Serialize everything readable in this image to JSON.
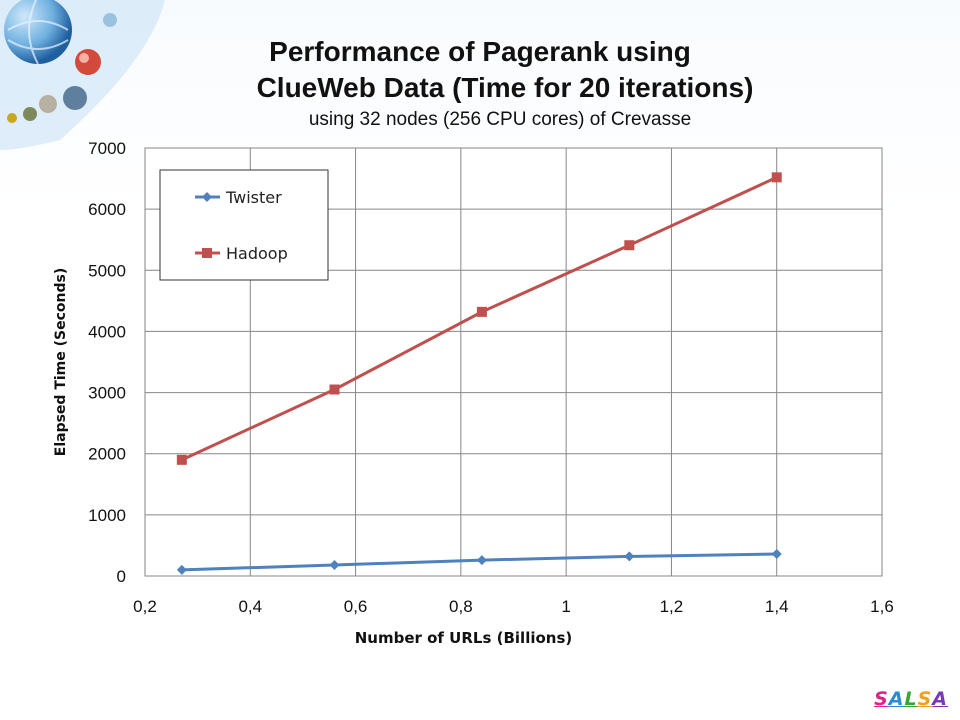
{
  "title": {
    "line1": "Performance of Pagerank using",
    "line2": "ClueWeb Data (Time for 20 iterations)",
    "subtitle": "using 32 nodes (256 CPU cores) of Crevasse"
  },
  "brand": {
    "letters": [
      "S",
      "A",
      "L",
      "S",
      "A"
    ],
    "colors": [
      "#e0218a",
      "#2a8ad4",
      "#3aa33a",
      "#f0a020",
      "#7a3ab0"
    ]
  },
  "chart_data": {
    "type": "line",
    "xlabel": "Number of URLs (Billions)",
    "ylabel": "Elapsed Time (Seconds)",
    "xlim": [
      0.2,
      1.6
    ],
    "ylim": [
      0,
      7000
    ],
    "x_ticks": [
      "0,2",
      "0,4",
      "0,6",
      "0,8",
      "1",
      "1,2",
      "1,4",
      "1,6"
    ],
    "y_ticks": [
      "0",
      "1000",
      "2000",
      "3000",
      "4000",
      "5000",
      "6000",
      "7000"
    ],
    "grid": true,
    "legend_position": "top-left",
    "series": [
      {
        "name": "Twister",
        "color": "#4f81bd",
        "marker": "diamond",
        "x": [
          0.27,
          0.56,
          0.84,
          1.12,
          1.4
        ],
        "y": [
          100,
          180,
          260,
          320,
          360
        ]
      },
      {
        "name": "Hadoop",
        "color": "#c0504d",
        "marker": "square",
        "x": [
          0.27,
          0.56,
          0.84,
          1.12,
          1.4
        ],
        "y": [
          1900,
          3050,
          4320,
          5410,
          6520
        ]
      }
    ]
  }
}
